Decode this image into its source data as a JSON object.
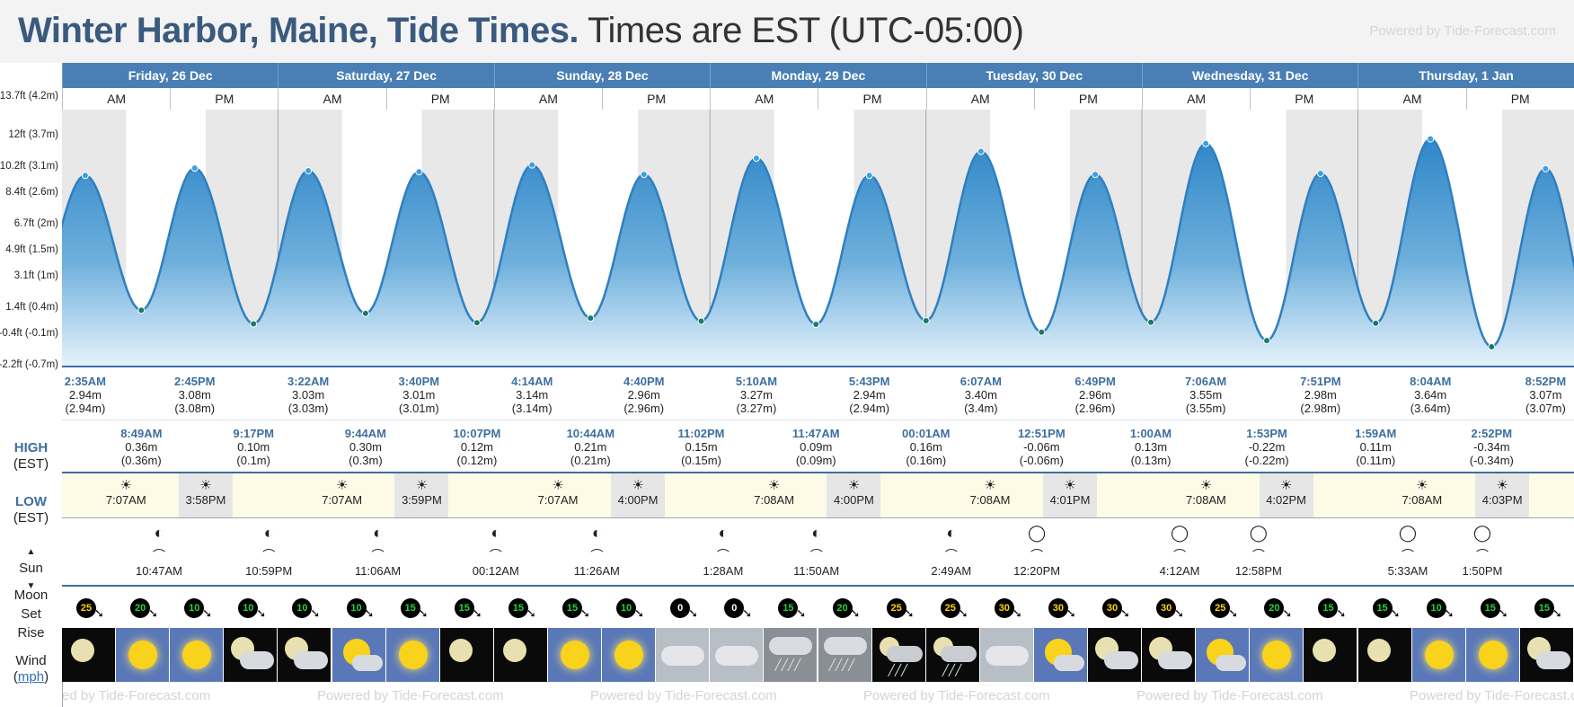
{
  "title": {
    "location": "Winter Harbor, Maine, Tide Times.",
    "timezone": "Times are EST (UTC-05:00)"
  },
  "powered_by": "Powered by Tide-Forecast.com",
  "powered_by_partial": "ed by Tide-Forecast.com",
  "row_labels": {
    "high": "HIGH",
    "high_sub": "(EST)",
    "low": "LOW",
    "low_sub": "(EST)",
    "sun": "Sun",
    "moon": "Moon",
    "set": "Set",
    "rise": "Rise",
    "wind": "Wind",
    "wind_unit": "mph"
  },
  "axis_labels": [
    "13.7ft (4.2m)",
    "12ft (3.7m)",
    "10.2ft (3.1m)",
    "8.4ft (2.6m)",
    "6.7ft (2m)",
    "4.9ft (1.5m)",
    "3.1ft (1m)",
    "1.4ft (0.4m)",
    "-0.4ft (-0.1m)",
    "-2.2ft (-0.7m)"
  ],
  "days": [
    {
      "name": "Friday, 26 Dec",
      "am": "AM",
      "pm": "PM"
    },
    {
      "name": "Saturday, 27 Dec",
      "am": "AM",
      "pm": "PM"
    },
    {
      "name": "Sunday, 28 Dec",
      "am": "AM",
      "pm": "PM"
    },
    {
      "name": "Monday, 29 Dec",
      "am": "AM",
      "pm": "PM"
    },
    {
      "name": "Tuesday, 30 Dec",
      "am": "AM",
      "pm": "PM"
    },
    {
      "name": "Wednesday, 31 Dec",
      "am": "AM",
      "pm": "PM"
    },
    {
      "name": "Thursday, 1 Jan",
      "am": "AM",
      "pm": "PM"
    }
  ],
  "highs": [
    {
      "time": "2:35AM",
      "m": "2.94m",
      "m2": "(2.94m)"
    },
    {
      "time": "2:45PM",
      "m": "3.08m",
      "m2": "(3.08m)"
    },
    {
      "time": "3:22AM",
      "m": "3.03m",
      "m2": "(3.03m)"
    },
    {
      "time": "3:40PM",
      "m": "3.01m",
      "m2": "(3.01m)"
    },
    {
      "time": "4:14AM",
      "m": "3.14m",
      "m2": "(3.14m)"
    },
    {
      "time": "4:40PM",
      "m": "2.96m",
      "m2": "(2.96m)"
    },
    {
      "time": "5:10AM",
      "m": "3.27m",
      "m2": "(3.27m)"
    },
    {
      "time": "5:43PM",
      "m": "2.94m",
      "m2": "(2.94m)"
    },
    {
      "time": "6:07AM",
      "m": "3.40m",
      "m2": "(3.4m)"
    },
    {
      "time": "6:49PM",
      "m": "2.96m",
      "m2": "(2.96m)"
    },
    {
      "time": "7:06AM",
      "m": "3.55m",
      "m2": "(3.55m)"
    },
    {
      "time": "7:51PM",
      "m": "2.98m",
      "m2": "(2.98m)"
    },
    {
      "time": "8:04AM",
      "m": "3.64m",
      "m2": "(3.64m)"
    },
    {
      "time": "8:52PM",
      "m": "3.07m",
      "m2": "(3.07m)"
    }
  ],
  "lows": [
    {
      "time": "8:49AM",
      "m": "0.36m",
      "m2": "(0.36m)"
    },
    {
      "time": "9:17PM",
      "m": "0.10m",
      "m2": "(0.1m)"
    },
    {
      "time": "9:44AM",
      "m": "0.30m",
      "m2": "(0.3m)"
    },
    {
      "time": "10:07PM",
      "m": "0.12m",
      "m2": "(0.12m)"
    },
    {
      "time": "10:44AM",
      "m": "0.21m",
      "m2": "(0.21m)"
    },
    {
      "time": "11:02PM",
      "m": "0.15m",
      "m2": "(0.15m)"
    },
    {
      "time": "11:47AM",
      "m": "0.09m",
      "m2": "(0.09m)"
    },
    {
      "time": "00:01AM",
      "m": "0.16m",
      "m2": "(0.16m)"
    },
    {
      "time": "12:51PM",
      "m": "-0.06m",
      "m2": "(-0.06m)"
    },
    {
      "time": "1:00AM",
      "m": "0.13m",
      "m2": "(0.13m)"
    },
    {
      "time": "1:53PM",
      "m": "-0.22m",
      "m2": "(-0.22m)"
    },
    {
      "time": "1:59AM",
      "m": "0.11m",
      "m2": "(0.11m)"
    },
    {
      "time": "2:52PM",
      "m": "-0.34m",
      "m2": "(-0.34m)"
    }
  ],
  "sun": [
    {
      "rise": "7:07AM",
      "set": "3:58PM"
    },
    {
      "rise": "7:07AM",
      "set": "3:59PM"
    },
    {
      "rise": "7:07AM",
      "set": "4:00PM"
    },
    {
      "rise": "7:08AM",
      "set": "4:00PM"
    },
    {
      "rise": "7:08AM",
      "set": "4:01PM"
    },
    {
      "rise": "7:08AM",
      "set": "4:02PM"
    },
    {
      "rise": "7:08AM",
      "set": "4:03PM"
    }
  ],
  "moon": [
    {
      "time": "10:47AM",
      "kind": "set"
    },
    {
      "time": "10:59PM",
      "kind": "rise"
    },
    {
      "time": "11:06AM",
      "kind": "set"
    },
    {
      "time": "00:12AM",
      "kind": "rise"
    },
    {
      "time": "11:26AM",
      "kind": "set"
    },
    {
      "time": "1:28AM",
      "kind": "rise"
    },
    {
      "time": "11:50AM",
      "kind": "set"
    },
    {
      "time": "2:49AM",
      "kind": "rise"
    },
    {
      "time": "12:20PM",
      "kind": "set"
    },
    {
      "time": "4:12AM",
      "kind": "rise"
    },
    {
      "time": "12:58PM",
      "kind": "set"
    },
    {
      "time": "5:33AM",
      "kind": "rise"
    },
    {
      "time": "1:50PM",
      "kind": "set"
    }
  ],
  "wind": [
    25,
    20,
    10,
    10,
    10,
    10,
    15,
    15,
    15,
    15,
    10,
    0,
    0,
    15,
    20,
    25,
    25,
    30,
    30,
    30,
    30,
    25,
    20,
    15,
    15,
    10,
    15,
    15
  ],
  "weather": [
    "night-clear",
    "sunny",
    "sunny",
    "night-cloudy",
    "night-cloudy",
    "partly-cloudy",
    "sunny",
    "night-clear",
    "night-clear",
    "sunny",
    "sunny",
    "cloudy",
    "cloudy",
    "rain",
    "rain",
    "night-rain",
    "night-rain",
    "cloudy",
    "partly-cloudy",
    "night-cloudy",
    "night-cloudy",
    "partly-cloudy",
    "sunny",
    "night-clear",
    "night-clear",
    "sunny",
    "sunny",
    "night-cloudy"
  ],
  "colors": {
    "header": "#4a7fb5",
    "tide_fill": "#2f87c8",
    "title": "#3a5a7e",
    "accent": "#3b6ea2"
  }
}
